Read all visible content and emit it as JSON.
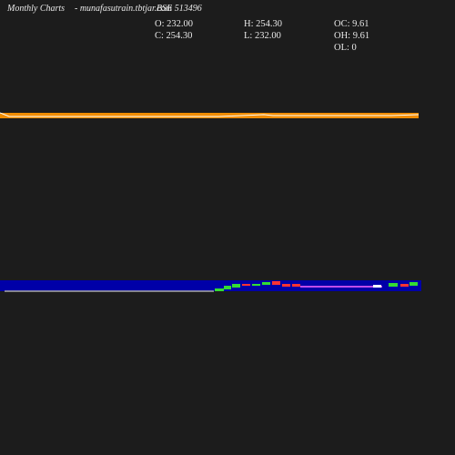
{
  "header": {
    "period": "Monthly Charts",
    "site": "- munafasutrain.tbtjar.com",
    "symbol": "BSE 513496"
  },
  "stats": {
    "open": "O: 232.00",
    "high": "H: 254.30",
    "oc": "OC: 9.61",
    "close": "C: 254.30",
    "low": "L: 232.00",
    "oh": "OH: 9.61",
    "ol": "OL: 0"
  }
}
